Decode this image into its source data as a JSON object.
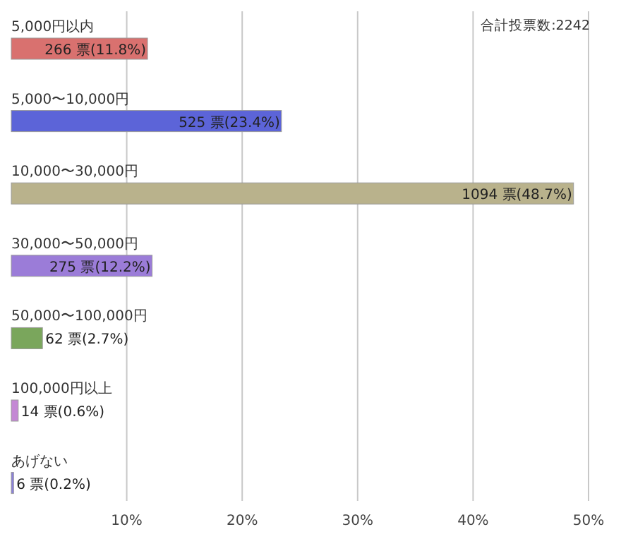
{
  "chart_data": {
    "type": "bar",
    "orientation": "horizontal",
    "categories": [
      "5,000円以内",
      "5,000〜10,000円",
      "10,000〜30,000円",
      "30,000〜50,000円",
      "50,000〜100,000円",
      "100,000円以上",
      "あげない"
    ],
    "values": [
      11.8,
      23.4,
      48.7,
      12.2,
      2.7,
      0.6,
      0.2
    ],
    "colors": [
      "#d9716f",
      "#5c64d8",
      "#b9b28c",
      "#9b7cd8",
      "#7aa65c",
      "#c488d4",
      "#8a80dc"
    ],
    "value_labels": [
      "266 票(11.8%)",
      "525 票(23.4%)",
      "1094 票(48.7%)",
      "275 票(12.2%)",
      "62 票(2.7%)",
      "14 票(0.6%)",
      "6 票(0.2%)"
    ],
    "xlim": [
      0,
      50
    ],
    "xticks": [
      {
        "value": 10,
        "label": "10%"
      },
      {
        "value": 20,
        "label": "20%"
      },
      {
        "value": 30,
        "label": "30%"
      },
      {
        "value": 40,
        "label": "40%"
      },
      {
        "value": 50,
        "label": "50%"
      }
    ],
    "grid": "x",
    "annotations": [
      "合計投票数:2242"
    ]
  }
}
